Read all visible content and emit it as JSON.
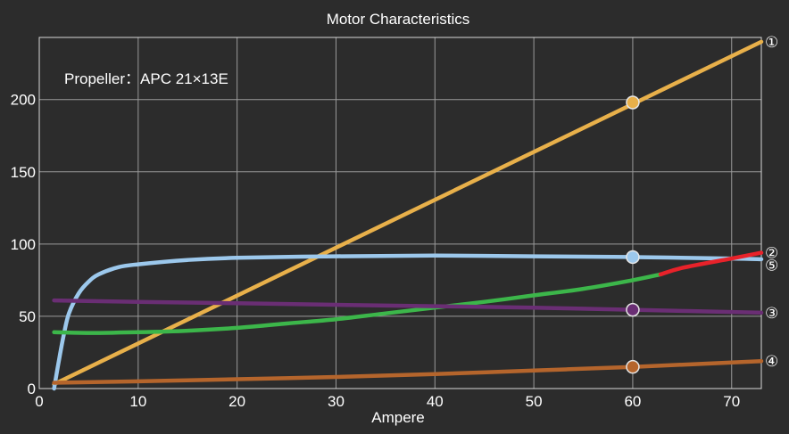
{
  "chart_data": {
    "type": "line",
    "title": "Motor Characteristics",
    "xlabel": "Ampere",
    "ylabel": "",
    "xlim": [
      0,
      73
    ],
    "ylim": [
      0,
      243
    ],
    "xticks": [
      0,
      10,
      20,
      30,
      40,
      50,
      60,
      70
    ],
    "yticks": [
      0,
      50,
      100,
      150,
      200
    ],
    "grid": true,
    "annotation": "Propeller：APC 21×13E",
    "marker_x": 60,
    "series": [
      {
        "name": "①",
        "color": "#e8b04a",
        "points": [
          [
            1.5,
            3
          ],
          [
            73,
            240
          ]
        ],
        "marker": [
          60,
          198
        ]
      },
      {
        "name": "⑤",
        "color": "#9cc8ec",
        "points": [
          [
            1.5,
            0
          ],
          [
            2,
            20
          ],
          [
            2.5,
            38
          ],
          [
            3,
            52
          ],
          [
            4,
            66
          ],
          [
            5,
            74
          ],
          [
            6,
            79
          ],
          [
            8,
            84
          ],
          [
            10,
            86
          ],
          [
            15,
            89
          ],
          [
            20,
            90.5
          ],
          [
            30,
            91.5
          ],
          [
            40,
            92
          ],
          [
            50,
            91.5
          ],
          [
            60,
            91
          ],
          [
            70,
            90
          ],
          [
            73,
            89.5
          ]
        ],
        "marker": [
          60,
          91
        ]
      },
      {
        "name": "②",
        "color": "#3cb64a",
        "color_after": "#e8222a",
        "split_x": 62.8,
        "points": [
          [
            1.5,
            39
          ],
          [
            5,
            38.5
          ],
          [
            10,
            39
          ],
          [
            15,
            40
          ],
          [
            20,
            42
          ],
          [
            25,
            45
          ],
          [
            30,
            48
          ],
          [
            35,
            52
          ],
          [
            40,
            56
          ],
          [
            45,
            60
          ],
          [
            50,
            64.5
          ],
          [
            55,
            69
          ],
          [
            60,
            75
          ],
          [
            62.8,
            79
          ],
          [
            65,
            83.5
          ],
          [
            70,
            90
          ],
          [
            73,
            94
          ]
        ]
      },
      {
        "name": "③",
        "color": "#6a2e74",
        "points": [
          [
            1.5,
            61
          ],
          [
            10,
            60
          ],
          [
            20,
            59
          ],
          [
            30,
            58
          ],
          [
            40,
            57
          ],
          [
            50,
            56
          ],
          [
            60,
            54.5
          ],
          [
            73,
            52.5
          ]
        ],
        "marker": [
          60,
          54.5
        ]
      },
      {
        "name": "④",
        "color": "#b5652c",
        "points": [
          [
            1.5,
            4
          ],
          [
            10,
            5
          ],
          [
            20,
            6.5
          ],
          [
            30,
            8
          ],
          [
            40,
            10
          ],
          [
            50,
            12.5
          ],
          [
            60,
            15
          ],
          [
            73,
            19
          ]
        ],
        "marker": [
          60,
          15
        ]
      }
    ]
  }
}
